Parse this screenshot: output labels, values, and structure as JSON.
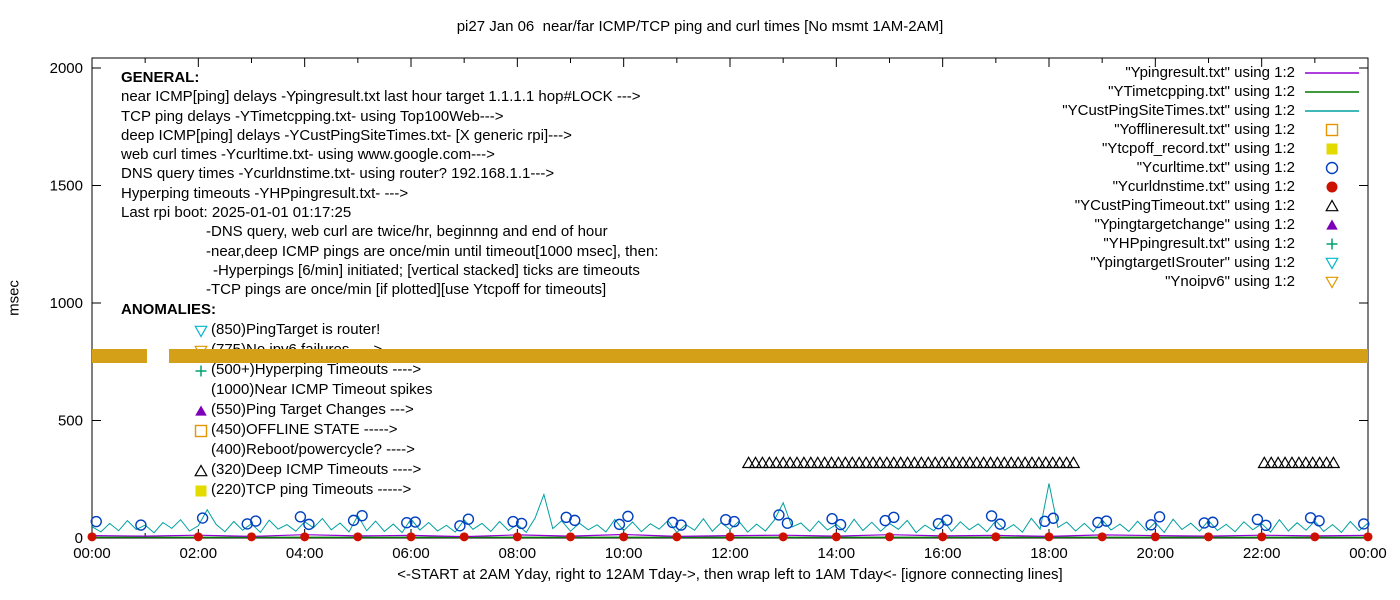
{
  "title": "pi27 Jan 06  near/far ICMP/TCP ping and curl times [No msmt 1AM-2AM]",
  "y_axis_label": "msec",
  "x_axis_caption": "<-START at 2AM Yday, right to 12AM Tday->, then wrap left to 1AM Tday<- [ignore connecting lines]",
  "general": {
    "header": "GENERAL:",
    "lines": [
      {
        "text": "near ICMP[ping] delays -Ypingresult.txt last hour target 1.1.1.1 hop#LOCK --->",
        "indent": 0
      },
      {
        "text": "TCP ping delays -YTimetcpping.txt- using Top100Web--->",
        "indent": 0
      },
      {
        "text": "deep ICMP[ping] delays -YCustPingSiteTimes.txt- [X generic rpi]--->",
        "indent": 0
      },
      {
        "text": "web curl times -Ycurltime.txt- using www.google.com--->",
        "indent": 0
      },
      {
        "text": "DNS query times -Ycurldnstime.txt- using router? 192.168.1.1--->",
        "indent": 0
      },
      {
        "text": "Hyperping timeouts -YHPpingresult.txt- --->",
        "indent": 0
      },
      {
        "text": "Last rpi boot: 2025-01-01 01:17:25",
        "indent": 0
      },
      {
        "text": "-DNS query, web curl are twice/hr, beginnng and end of hour",
        "indent": 1
      },
      {
        "text": "-near,deep ICMP pings are once/min until timeout[1000 msec], then:",
        "indent": 1
      },
      {
        "text": "-Hyperpings [6/min] initiated; [vertical stacked] ticks are timeouts",
        "indent": 2
      },
      {
        "text": "-TCP pings are once/min [if plotted][use Ytcpoff for timeouts]",
        "indent": 1
      }
    ]
  },
  "anomalies": {
    "header": "ANOMALIES:",
    "rows": [
      {
        "marker": "triangle-down-open",
        "color": "#00B8C8",
        "text": "(850)PingTarget is router!"
      },
      {
        "marker": "triangle-down-open",
        "color": "#DD9900",
        "text": "(775)No ipv6 failures ---->"
      },
      {
        "marker": "plus",
        "color": "#00A070",
        "text": "(500+)Hyperping Timeouts ---->"
      },
      {
        "marker": null,
        "color": null,
        "text": "(1000)Near ICMP Timeout spikes"
      },
      {
        "marker": "triangle-up-filled",
        "color": "#7D00B8",
        "text": "(550)Ping Target Changes --->"
      },
      {
        "marker": "square-open",
        "color": "#E69500",
        "text": "(450)OFFLINE STATE ----->"
      },
      {
        "marker": null,
        "color": null,
        "text": "(400)Reboot/powercycle? ---->"
      },
      {
        "marker": "triangle-up-open",
        "color": "#000000",
        "text": "(320)Deep ICMP Timeouts ---->"
      },
      {
        "marker": "square-filled",
        "color": "#E3DB00",
        "text": "(220)TCP ping Timeouts ----->"
      }
    ]
  },
  "legend": [
    {
      "label": "\"Ypingresult.txt\" using 1:2",
      "sample": "line",
      "color": "#9400D3"
    },
    {
      "label": "\"YTimetcpping.txt\" using 1:2",
      "sample": "line",
      "color": "#007A00"
    },
    {
      "label": "\"YCustPingSiteTimes.txt\" using 1:2",
      "sample": "line",
      "color": "#00A0A0"
    },
    {
      "label": "\"Yofflineresult.txt\" using 1:2",
      "sample": "square-open",
      "color": "#E69500"
    },
    {
      "label": "\"Ytcpoff_record.txt\" using 1:2",
      "sample": "square-filled",
      "color": "#E3DB00"
    },
    {
      "label": "\"Ycurltime.txt\" using 1:2",
      "sample": "circle-open",
      "color": "#0040C0"
    },
    {
      "label": "\"Ycurldnstime.txt\" using 1:2",
      "sample": "circle-filled",
      "color": "#CC1100"
    },
    {
      "label": "\"YCustPingTimeout.txt\" using 1:2",
      "sample": "triangle-up-open",
      "color": "#000000"
    },
    {
      "label": "\"Ypingtargetchange\" using 1:2",
      "sample": "triangle-up-filled",
      "color": "#7D00B8"
    },
    {
      "label": "\"YHPpingresult.txt\" using 1:2",
      "sample": "plus",
      "color": "#00A070"
    },
    {
      "label": "\"YpingtargetISrouter\" using 1:2",
      "sample": "triangle-down-open",
      "color": "#00B8C8"
    },
    {
      "label": "\"Ynoipv6\" using 1:2",
      "sample": "triangle-down-open",
      "color": "#DD9900"
    }
  ],
  "chart_data": {
    "type": "line",
    "title": "pi27 Jan 06  near/far ICMP/TCP ping and curl times [No msmt 1AM-2AM]",
    "xlabel": "<-START at 2AM Yday, right to 12AM Tday->, then wrap left to 1AM Tday<- [ignore connecting lines]",
    "ylabel": "msec",
    "xlim": [
      0,
      24
    ],
    "ylim": [
      0,
      2040
    ],
    "grid": false,
    "legend_position": "top-right",
    "x_ticks": [
      0,
      2,
      4,
      6,
      8,
      10,
      12,
      14,
      16,
      18,
      20,
      22,
      24
    ],
    "x_tick_labels": [
      "00:00",
      "02:00",
      "04:00",
      "06:00",
      "08:00",
      "10:00",
      "12:00",
      "14:00",
      "16:00",
      "18:00",
      "20:00",
      "22:00",
      "00:00"
    ],
    "x_minor_ticks": [
      1,
      3,
      5,
      7,
      9,
      11,
      13,
      15,
      17,
      19,
      21,
      23
    ],
    "y_ticks": [
      0,
      500,
      1000,
      1500,
      2000
    ],
    "series": [
      {
        "name": "YCustPingSiteTimes.txt",
        "type": "line",
        "color": "#00A0A0",
        "width": 1,
        "x_start": 0,
        "x_step": 0.166667,
        "values": [
          48,
          26,
          62,
          31,
          74,
          36,
          55,
          22,
          66,
          41,
          78,
          30,
          52,
          120,
          58,
          27,
          70,
          33,
          61,
          24,
          76,
          38,
          57,
          29,
          69,
          44,
          83,
          35,
          64,
          26,
          95,
          31,
          72,
          28,
          59,
          23,
          81,
          34,
          66,
          30,
          54,
          25,
          77,
          37,
          62,
          28,
          70,
          32,
          58,
          24,
          85,
          185,
          40,
          73,
          29,
          63,
          35,
          56,
          26,
          79,
          31,
          68,
          27,
          61,
          38,
          74,
          24,
          57,
          33,
          82,
          29,
          65,
          36,
          71,
          25,
          59,
          30,
          76,
          150,
          47,
          64,
          28,
          72,
          34,
          58,
          26,
          80,
          32,
          67,
          29,
          62,
          37,
          75,
          23,
          55,
          31,
          78,
          28,
          69,
          35,
          60,
          27,
          73,
          33,
          57,
          25,
          84,
          38,
          232,
          45,
          68,
          30,
          62,
          26,
          77,
          34,
          59,
          28,
          71,
          31,
          66,
          24,
          80,
          36,
          63,
          29,
          74,
          32,
          58,
          27,
          69,
          35,
          61,
          25,
          78,
          30,
          65,
          33,
          72,
          28,
          57,
          24,
          70,
          31,
          64
        ]
      },
      {
        "name": "YTimetcpping.txt",
        "type": "line",
        "color": "#007A00",
        "width": 1.4,
        "points": [
          [
            0,
            3
          ],
          [
            24,
            3
          ]
        ]
      },
      {
        "name": "Ypingresult.txt",
        "type": "line",
        "color": "#9400D3",
        "width": 1.2,
        "x_start": 0,
        "x_step": 1,
        "values": [
          10,
          8,
          12,
          7,
          14,
          9,
          11,
          6,
          13,
          8,
          15,
          7,
          10,
          12,
          8,
          14,
          9,
          11,
          7,
          13,
          10,
          8,
          12,
          9,
          11
        ]
      },
      {
        "name": "Ycurltime.txt",
        "type": "points",
        "marker": "circle-open",
        "color": "#0040C0",
        "size": 5,
        "points": [
          [
            0.08,
            70
          ],
          [
            0.92,
            55
          ],
          [
            2.08,
            85
          ],
          [
            2.92,
            60
          ],
          [
            3.08,
            72
          ],
          [
            3.92,
            90
          ],
          [
            4.08,
            58
          ],
          [
            4.92,
            75
          ],
          [
            5.08,
            95
          ],
          [
            5.92,
            65
          ],
          [
            6.08,
            68
          ],
          [
            6.92,
            52
          ],
          [
            7.08,
            80
          ],
          [
            7.92,
            70
          ],
          [
            8.08,
            62
          ],
          [
            8.92,
            88
          ],
          [
            9.08,
            75
          ],
          [
            9.92,
            58
          ],
          [
            10.08,
            92
          ],
          [
            10.92,
            66
          ],
          [
            11.08,
            55
          ],
          [
            11.92,
            78
          ],
          [
            12.08,
            70
          ],
          [
            12.92,
            98
          ],
          [
            13.08,
            63
          ],
          [
            13.92,
            82
          ],
          [
            14.08,
            57
          ],
          [
            14.92,
            74
          ],
          [
            15.08,
            88
          ],
          [
            15.92,
            61
          ],
          [
            16.08,
            76
          ],
          [
            16.92,
            94
          ],
          [
            17.08,
            59
          ],
          [
            17.92,
            71
          ],
          [
            18.08,
            84
          ],
          [
            18.92,
            66
          ],
          [
            19.08,
            72
          ],
          [
            19.92,
            56
          ],
          [
            20.08,
            90
          ],
          [
            20.92,
            64
          ],
          [
            21.08,
            67
          ],
          [
            21.92,
            79
          ],
          [
            22.08,
            54
          ],
          [
            22.92,
            86
          ],
          [
            23.08,
            73
          ],
          [
            23.92,
            60
          ]
        ]
      },
      {
        "name": "Ycurldnstime.txt",
        "type": "points",
        "marker": "circle-filled",
        "color": "#CC1100",
        "size": 4.5,
        "y": 5,
        "x": [
          0,
          2,
          3,
          4,
          5,
          6,
          7,
          8,
          9,
          10,
          11,
          12,
          13,
          14,
          15,
          16,
          17,
          18,
          19,
          20,
          21,
          22,
          23,
          24
        ]
      },
      {
        "name": "YCustPingTimeout.txt",
        "type": "points",
        "marker": "triangle-up-open",
        "color": "#000000",
        "size": 5.5,
        "y": 320,
        "clusters": [
          {
            "from": 12.35,
            "to": 18.55,
            "step": 0.13
          },
          {
            "from": 22.05,
            "to": 23.45,
            "step": 0.13
          }
        ]
      },
      {
        "name": "Ynoipv6",
        "type": "band",
        "color": "#D4A017",
        "y": 775,
        "height_msec": 60,
        "segments": [
          [
            0,
            1.03
          ],
          [
            1.45,
            24
          ]
        ]
      }
    ]
  }
}
